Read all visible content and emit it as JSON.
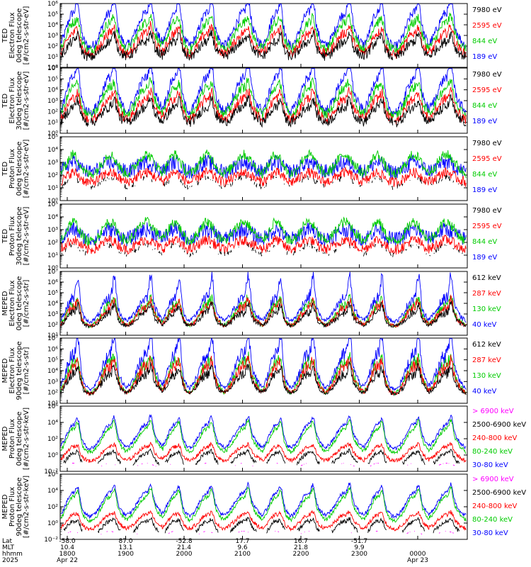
{
  "chart_data": [
    {
      "type": "line",
      "ylabel_lines": [
        "TED",
        "Electron Flux",
        "0deg telescope",
        "[#/cm2-s-str-eV]"
      ],
      "yscale": "log",
      "ylim": [
        1,
        1000000
      ],
      "yticks": [
        "10⁰",
        "10¹",
        "10²",
        "10³",
        "10⁴",
        "10⁵",
        "10⁶"
      ],
      "series": [
        {
          "name": "7980 eV",
          "color": "#000000"
        },
        {
          "name": "2595 eV",
          "color": "#ff0000"
        },
        {
          "name": "844 eV",
          "color": "#00cc00"
        },
        {
          "name": "189 eV",
          "color": "#0000ff"
        }
      ]
    },
    {
      "type": "line",
      "ylabel_lines": [
        "TED",
        "Electron Flux",
        "30deg telescope",
        "[#/cm2-s-str-eV]"
      ],
      "yscale": "log",
      "ylim": [
        1,
        1000000
      ],
      "yticks": [
        "10⁰",
        "10¹",
        "10²",
        "10³",
        "10⁴",
        "10⁵",
        "10⁶"
      ],
      "series": [
        {
          "name": "7980 eV",
          "color": "#000000"
        },
        {
          "name": "2595 eV",
          "color": "#ff0000"
        },
        {
          "name": "844 eV",
          "color": "#00cc00"
        },
        {
          "name": "189 eV",
          "color": "#0000ff"
        }
      ]
    },
    {
      "type": "line",
      "ylabel_lines": [
        "TED",
        "Proton Flux",
        "0deg telescope",
        "[#/cm2-s-str-eV]"
      ],
      "yscale": "log",
      "ylim": [
        1,
        100000
      ],
      "yticks": [
        "10⁰",
        "10¹",
        "10²",
        "10³",
        "10⁴",
        "10⁵"
      ],
      "series": [
        {
          "name": "7980 eV",
          "color": "#000000"
        },
        {
          "name": "2595 eV",
          "color": "#ff0000"
        },
        {
          "name": "844 eV",
          "color": "#00cc00"
        },
        {
          "name": "189 eV",
          "color": "#0000ff"
        }
      ]
    },
    {
      "type": "line",
      "ylabel_lines": [
        "TED",
        "Proton Flux",
        "30deg telescope",
        "[#/cm2-s-str-eV]"
      ],
      "yscale": "log",
      "ylim": [
        1,
        100000
      ],
      "yticks": [
        "10⁰",
        "10¹",
        "10²",
        "10³",
        "10⁴",
        "10⁵"
      ],
      "series": [
        {
          "name": "7980 eV",
          "color": "#000000"
        },
        {
          "name": "2595 eV",
          "color": "#ff0000"
        },
        {
          "name": "844 eV",
          "color": "#00cc00"
        },
        {
          "name": "189 eV",
          "color": "#0000ff"
        }
      ]
    },
    {
      "type": "line",
      "ylabel_lines": [
        "MEPED",
        "Electron Flux",
        "0deg telescope",
        "[#/cm2-s-str]"
      ],
      "yscale": "log",
      "ylim": [
        10,
        10000000
      ],
      "yticks": [
        "10¹",
        "10²",
        "10³",
        "10⁴",
        "10⁵",
        "10⁶",
        "10⁷"
      ],
      "series": [
        {
          "name": "612 keV",
          "color": "#000000"
        },
        {
          "name": "287 keV",
          "color": "#ff0000"
        },
        {
          "name": "130 keV",
          "color": "#00cc00"
        },
        {
          "name": "40 keV",
          "color": "#0000ff"
        }
      ]
    },
    {
      "type": "line",
      "ylabel_lines": [
        "MEPED",
        "Electron Flux",
        "90deg telescope",
        "[#/cm2-s-str]"
      ],
      "yscale": "log",
      "ylim": [
        10,
        10000000
      ],
      "yticks": [
        "10¹",
        "10²",
        "10³",
        "10⁴",
        "10⁵",
        "10⁶",
        "10⁷"
      ],
      "series": [
        {
          "name": "612 keV",
          "color": "#000000"
        },
        {
          "name": "287 keV",
          "color": "#ff0000"
        },
        {
          "name": "130 keV",
          "color": "#00cc00"
        },
        {
          "name": "40 keV",
          "color": "#0000ff"
        }
      ]
    },
    {
      "type": "line",
      "ylabel_lines": [
        "MEPED",
        "Proton Flux",
        "0deg telescope",
        "[#/cm2-s-str-keV]"
      ],
      "yscale": "log",
      "ylim": [
        0.01,
        1000000
      ],
      "yticks": [
        "10⁻²",
        "10⁰",
        "10²",
        "10⁴",
        "10⁶"
      ],
      "series": [
        {
          "name": "> 6900 keV",
          "color": "#ff00ff"
        },
        {
          "name": "2500-6900 keV",
          "color": "#000000"
        },
        {
          "name": "240-800 keV",
          "color": "#ff0000"
        },
        {
          "name": "80-240 keV",
          "color": "#00cc00"
        },
        {
          "name": "30-80 keV",
          "color": "#0000ff"
        }
      ]
    },
    {
      "type": "line",
      "ylabel_lines": [
        "MEPED",
        "Proton Flux",
        "90deg telescope",
        "[#/cm2-s-str-keV]"
      ],
      "yscale": "log",
      "ylim": [
        0.01,
        1000000
      ],
      "yticks": [
        "10⁻²",
        "10⁰",
        "10²",
        "10⁴",
        "10⁶"
      ],
      "series": [
        {
          "name": "> 6900 keV",
          "color": "#ff00ff"
        },
        {
          "name": "2500-6900 keV",
          "color": "#000000"
        },
        {
          "name": "240-800 keV",
          "color": "#ff0000"
        },
        {
          "name": "80-240 keV",
          "color": "#00cc00"
        },
        {
          "name": "30-80 keV",
          "color": "#0000ff"
        }
      ]
    }
  ],
  "x_axis": {
    "row_labels": [
      "Lat",
      "MLT",
      "hhmm",
      "2025"
    ],
    "ticks": [
      {
        "lat": "-58.0",
        "mlt": "10.4",
        "hhmm": "1800",
        "date": "Apr 22"
      },
      {
        "lat": "87.0",
        "mlt": "13.1",
        "hhmm": "1900",
        "date": ""
      },
      {
        "lat": "-52.8",
        "mlt": "21.4",
        "hhmm": "2000",
        "date": ""
      },
      {
        "lat": "17.7",
        "mlt": "9.6",
        "hhmm": "2100",
        "date": ""
      },
      {
        "lat": "16.7",
        "mlt": "21.8",
        "hhmm": "2200",
        "date": ""
      },
      {
        "lat": "-51.7",
        "mlt": "9.9",
        "hhmm": "2300",
        "date": ""
      },
      {
        "lat": "",
        "mlt": "",
        "hhmm": "0000",
        "date": "Apr 23"
      }
    ]
  }
}
